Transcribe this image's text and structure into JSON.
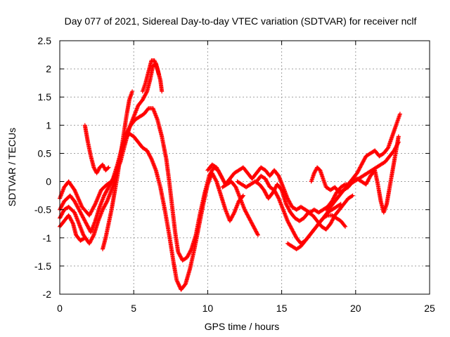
{
  "chart_data": {
    "type": "scatter",
    "title": "Day 077 of 2021, Sidereal Day-to-day VTEC variation (SDTVAR) for receiver nclf",
    "xlabel": "GPS time / hours",
    "ylabel": "SDTVAR / TECUs",
    "xlim": [
      0,
      25
    ],
    "ylim": [
      -2,
      2.5
    ],
    "xticks": [
      0,
      5,
      10,
      15,
      20,
      25
    ],
    "yticks": [
      -2,
      -1.5,
      -1,
      -0.5,
      0,
      0.5,
      1,
      1.5,
      2,
      2.5
    ],
    "xtick_labels": [
      "0",
      "5",
      "10",
      "15",
      "20",
      "25"
    ],
    "ytick_labels": [
      "-2",
      "-1.5",
      "-1",
      "-0.5",
      "0",
      "0.5",
      "1",
      "1.5",
      "2",
      "2.5"
    ],
    "grid": true,
    "marker": "plus",
    "color": "#ff0000",
    "series": [
      {
        "points": [
          [
            0,
            -0.3
          ],
          [
            0.3,
            -0.1
          ],
          [
            0.6,
            0.0
          ],
          [
            1.0,
            -0.15
          ],
          [
            1.5,
            -0.45
          ],
          [
            2.0,
            -0.6
          ],
          [
            2.4,
            -0.4
          ],
          [
            2.8,
            -0.15
          ],
          [
            3.2,
            -0.05
          ],
          [
            3.5,
            0.0
          ],
          [
            3.8,
            0.15
          ],
          [
            4.1,
            0.35
          ],
          [
            4.4,
            0.65
          ],
          [
            4.7,
            0.95
          ],
          [
            5.0,
            1.15
          ],
          [
            5.3,
            1.35
          ],
          [
            5.6,
            1.45
          ],
          [
            5.9,
            1.6
          ],
          [
            6.1,
            1.8
          ],
          [
            6.3,
            2.05
          ],
          [
            6.5,
            2.1
          ],
          [
            6.7,
            1.9
          ]
        ]
      },
      {
        "points": [
          [
            0,
            -0.5
          ],
          [
            0.3,
            -0.35
          ],
          [
            0.7,
            -0.25
          ],
          [
            1.0,
            -0.35
          ],
          [
            1.4,
            -0.55
          ],
          [
            1.8,
            -0.75
          ],
          [
            2.1,
            -0.9
          ],
          [
            2.4,
            -0.7
          ],
          [
            2.7,
            -0.45
          ],
          [
            3.0,
            -0.25
          ],
          [
            3.3,
            -0.1
          ],
          [
            3.6,
            0.05
          ],
          [
            3.9,
            0.3
          ],
          [
            4.2,
            0.6
          ],
          [
            4.5,
            0.85
          ],
          [
            4.8,
            1.0
          ],
          [
            5.1,
            1.1
          ],
          [
            5.4,
            1.15
          ],
          [
            5.7,
            1.2
          ],
          [
            6.0,
            1.3
          ],
          [
            6.3,
            1.3
          ],
          [
            6.6,
            1.1
          ],
          [
            6.9,
            0.8
          ],
          [
            7.2,
            0.4
          ],
          [
            7.4,
            0.0
          ],
          [
            7.6,
            -0.45
          ],
          [
            7.8,
            -0.9
          ],
          [
            8.0,
            -1.25
          ],
          [
            8.3,
            -1.4
          ],
          [
            8.6,
            -1.35
          ],
          [
            8.9,
            -1.2
          ],
          [
            9.2,
            -0.95
          ],
          [
            9.5,
            -0.55
          ],
          [
            9.8,
            -0.2
          ],
          [
            10.1,
            0.1
          ],
          [
            10.4,
            0.25
          ],
          [
            10.7,
            0.2
          ],
          [
            11.0,
            0.05
          ]
        ]
      },
      {
        "points": [
          [
            0,
            -0.65
          ],
          [
            0.3,
            -0.5
          ],
          [
            0.6,
            -0.45
          ],
          [
            1.0,
            -0.55
          ],
          [
            1.3,
            -0.75
          ],
          [
            1.6,
            -0.95
          ],
          [
            2.0,
            -1.1
          ],
          [
            2.3,
            -0.95
          ],
          [
            2.6,
            -0.7
          ],
          [
            2.9,
            -0.5
          ],
          [
            3.2,
            -0.35
          ],
          [
            3.5,
            -0.15
          ],
          [
            3.8,
            0.1
          ],
          [
            4.1,
            0.45
          ],
          [
            4.4,
            0.75
          ],
          [
            4.7,
            0.85
          ],
          [
            5.0,
            0.8
          ],
          [
            5.3,
            0.7
          ],
          [
            5.6,
            0.6
          ],
          [
            5.9,
            0.55
          ],
          [
            6.2,
            0.4
          ],
          [
            6.5,
            0.2
          ],
          [
            6.8,
            -0.1
          ],
          [
            7.1,
            -0.5
          ],
          [
            7.4,
            -0.95
          ],
          [
            7.7,
            -1.45
          ],
          [
            7.9,
            -1.75
          ],
          [
            8.2,
            -1.92
          ],
          [
            8.5,
            -1.82
          ],
          [
            8.8,
            -1.55
          ],
          [
            9.1,
            -1.2
          ],
          [
            9.4,
            -0.8
          ],
          [
            9.7,
            -0.4
          ],
          [
            10.0,
            -0.05
          ],
          [
            10.3,
            0.15
          ],
          [
            10.6,
            0.0
          ],
          [
            10.9,
            -0.25
          ],
          [
            11.2,
            -0.5
          ],
          [
            11.5,
            -0.7
          ],
          [
            11.8,
            -0.55
          ],
          [
            12.1,
            -0.35
          ],
          [
            12.4,
            -0.25
          ]
        ]
      },
      {
        "points": [
          [
            0,
            -0.8
          ],
          [
            0.3,
            -0.7
          ],
          [
            0.6,
            -0.6
          ],
          [
            0.9,
            -0.75
          ],
          [
            1.1,
            -0.95
          ],
          [
            1.4,
            -1.05
          ],
          [
            1.7,
            -1.0
          ]
        ]
      },
      {
        "points": [
          [
            1.7,
            1.0
          ],
          [
            1.9,
            0.7
          ],
          [
            2.1,
            0.45
          ],
          [
            2.3,
            0.25
          ],
          [
            2.5,
            0.15
          ],
          [
            2.7,
            0.25
          ],
          [
            2.9,
            0.3
          ],
          [
            3.1,
            0.2
          ],
          [
            3.3,
            0.25
          ]
        ]
      },
      {
        "points": [
          [
            2.9,
            -1.2
          ],
          [
            3.1,
            -1.0
          ],
          [
            3.3,
            -0.75
          ],
          [
            3.5,
            -0.5
          ],
          [
            3.7,
            -0.2
          ],
          [
            3.9,
            0.1
          ],
          [
            4.1,
            0.45
          ],
          [
            4.3,
            0.8
          ],
          [
            4.5,
            1.15
          ],
          [
            4.7,
            1.45
          ],
          [
            4.9,
            1.6
          ]
        ]
      },
      {
        "points": [
          [
            5.6,
            1.6
          ],
          [
            5.8,
            1.75
          ],
          [
            6.0,
            1.95
          ],
          [
            6.2,
            2.15
          ],
          [
            6.4,
            2.15
          ],
          [
            6.6,
            2.0
          ],
          [
            6.8,
            1.8
          ],
          [
            6.9,
            1.6
          ]
        ]
      },
      {
        "points": [
          [
            10.0,
            0.2
          ],
          [
            10.3,
            0.3
          ],
          [
            10.6,
            0.25
          ],
          [
            10.9,
            0.1
          ],
          [
            11.2,
            -0.05
          ],
          [
            11.5,
            0.05
          ],
          [
            11.8,
            0.15
          ],
          [
            12.1,
            0.2
          ],
          [
            12.4,
            0.25
          ],
          [
            12.7,
            0.15
          ],
          [
            13.0,
            0.05
          ],
          [
            13.3,
            0.15
          ],
          [
            13.6,
            0.25
          ],
          [
            13.9,
            0.2
          ],
          [
            14.2,
            0.1
          ],
          [
            14.5,
            0.2
          ],
          [
            14.8,
            0.1
          ],
          [
            15.1,
            -0.1
          ],
          [
            15.4,
            -0.3
          ],
          [
            15.7,
            -0.45
          ],
          [
            16.0,
            -0.5
          ],
          [
            16.3,
            -0.45
          ],
          [
            16.6,
            -0.5
          ],
          [
            16.9,
            -0.55
          ],
          [
            17.2,
            -0.5
          ],
          [
            17.5,
            -0.55
          ],
          [
            17.8,
            -0.5
          ],
          [
            18.1,
            -0.45
          ],
          [
            18.4,
            -0.35
          ],
          [
            18.7,
            -0.2
          ],
          [
            19.0,
            -0.1
          ],
          [
            19.3,
            -0.05
          ],
          [
            19.6,
            -0.05
          ],
          [
            19.9,
            0.0
          ],
          [
            20.2,
            0.05
          ],
          [
            20.5,
            0.1
          ],
          [
            20.8,
            0.15
          ],
          [
            21.1,
            0.2
          ],
          [
            21.4,
            0.25
          ],
          [
            21.7,
            0.3
          ],
          [
            22.0,
            0.35
          ],
          [
            22.3,
            0.45
          ],
          [
            22.6,
            0.55
          ],
          [
            22.9,
            0.7
          ]
        ]
      },
      {
        "points": [
          [
            11.0,
            -0.1
          ],
          [
            11.3,
            -0.05
          ],
          [
            11.6,
            0.0
          ],
          [
            11.9,
            -0.1
          ],
          [
            12.2,
            -0.3
          ],
          [
            12.5,
            -0.5
          ],
          [
            12.8,
            -0.65
          ],
          [
            13.1,
            -0.8
          ],
          [
            13.4,
            -0.95
          ]
        ]
      },
      {
        "points": [
          [
            12.0,
            0.0
          ],
          [
            12.3,
            -0.05
          ],
          [
            12.6,
            -0.1
          ],
          [
            12.9,
            -0.05
          ],
          [
            13.2,
            0.0
          ],
          [
            13.5,
            -0.05
          ],
          [
            13.8,
            -0.15
          ],
          [
            14.1,
            -0.3
          ],
          [
            14.4,
            -0.2
          ],
          [
            14.7,
            -0.05
          ],
          [
            15.0,
            -0.15
          ],
          [
            15.3,
            -0.4
          ],
          [
            15.6,
            -0.55
          ],
          [
            15.9,
            -0.65
          ],
          [
            16.2,
            -0.7
          ],
          [
            16.5,
            -0.65
          ],
          [
            16.8,
            -0.55
          ],
          [
            17.1,
            -0.6
          ],
          [
            17.4,
            -0.7
          ],
          [
            17.7,
            -0.8
          ],
          [
            18.0,
            -0.85
          ],
          [
            18.3,
            -0.75
          ],
          [
            18.6,
            -0.6
          ],
          [
            18.9,
            -0.5
          ],
          [
            19.2,
            -0.4
          ],
          [
            19.5,
            -0.3
          ],
          [
            19.8,
            -0.25
          ]
        ]
      },
      {
        "points": [
          [
            13.3,
            0.0
          ],
          [
            13.6,
            0.1
          ],
          [
            13.9,
            0.05
          ],
          [
            14.2,
            -0.1
          ],
          [
            14.5,
            -0.15
          ],
          [
            14.8,
            -0.3
          ],
          [
            15.1,
            -0.5
          ],
          [
            15.4,
            -0.7
          ],
          [
            15.7,
            -0.85
          ],
          [
            16.0,
            -1.0
          ],
          [
            16.3,
            -1.1
          ],
          [
            16.6,
            -1.05
          ],
          [
            16.9,
            -0.95
          ],
          [
            17.2,
            -0.85
          ],
          [
            17.5,
            -0.75
          ],
          [
            17.8,
            -0.65
          ],
          [
            18.1,
            -0.55
          ],
          [
            18.4,
            -0.5
          ],
          [
            18.7,
            -0.45
          ],
          [
            19.0,
            -0.4
          ]
        ]
      },
      {
        "points": [
          [
            15.4,
            -1.1
          ],
          [
            15.7,
            -1.15
          ],
          [
            16.0,
            -1.2
          ],
          [
            16.3,
            -1.15
          ],
          [
            16.6,
            -1.05
          ],
          [
            16.9,
            -0.95
          ],
          [
            17.2,
            -0.85
          ],
          [
            17.5,
            -0.75
          ],
          [
            17.8,
            -0.65
          ],
          [
            18.1,
            -0.6
          ],
          [
            18.4,
            -0.6
          ],
          [
            18.7,
            -0.65
          ],
          [
            19.0,
            -0.7
          ],
          [
            19.3,
            -0.8
          ]
        ]
      },
      {
        "points": [
          [
            17.0,
            0.0
          ],
          [
            17.2,
            0.15
          ],
          [
            17.4,
            0.25
          ],
          [
            17.6,
            0.2
          ],
          [
            17.8,
            0.05
          ],
          [
            18.0,
            -0.1
          ],
          [
            18.3,
            -0.15
          ],
          [
            18.6,
            -0.1
          ],
          [
            18.9,
            -0.2
          ],
          [
            19.2,
            -0.15
          ],
          [
            19.5,
            -0.1
          ],
          [
            19.8,
            0.0
          ],
          [
            20.1,
            0.05
          ],
          [
            20.4,
            0.0
          ],
          [
            20.7,
            -0.05
          ],
          [
            21.0,
            0.1
          ],
          [
            21.3,
            0.2
          ],
          [
            21.5,
            -0.05
          ],
          [
            21.7,
            -0.35
          ],
          [
            21.9,
            -0.55
          ],
          [
            22.1,
            -0.4
          ],
          [
            22.3,
            -0.1
          ],
          [
            22.5,
            0.2
          ],
          [
            22.7,
            0.5
          ],
          [
            22.9,
            0.8
          ]
        ]
      },
      {
        "points": [
          [
            18.0,
            -0.5
          ],
          [
            18.3,
            -0.45
          ],
          [
            18.6,
            -0.35
          ],
          [
            18.9,
            -0.25
          ],
          [
            19.2,
            -0.15
          ],
          [
            19.5,
            -0.05
          ],
          [
            19.8,
            0.05
          ],
          [
            20.1,
            0.15
          ],
          [
            20.4,
            0.3
          ],
          [
            20.7,
            0.45
          ],
          [
            21.0,
            0.5
          ],
          [
            21.3,
            0.55
          ],
          [
            21.6,
            0.45
          ],
          [
            21.9,
            0.5
          ],
          [
            22.2,
            0.6
          ],
          [
            22.4,
            0.75
          ],
          [
            22.6,
            0.9
          ],
          [
            22.8,
            1.05
          ],
          [
            23.0,
            1.2
          ]
        ]
      }
    ]
  }
}
